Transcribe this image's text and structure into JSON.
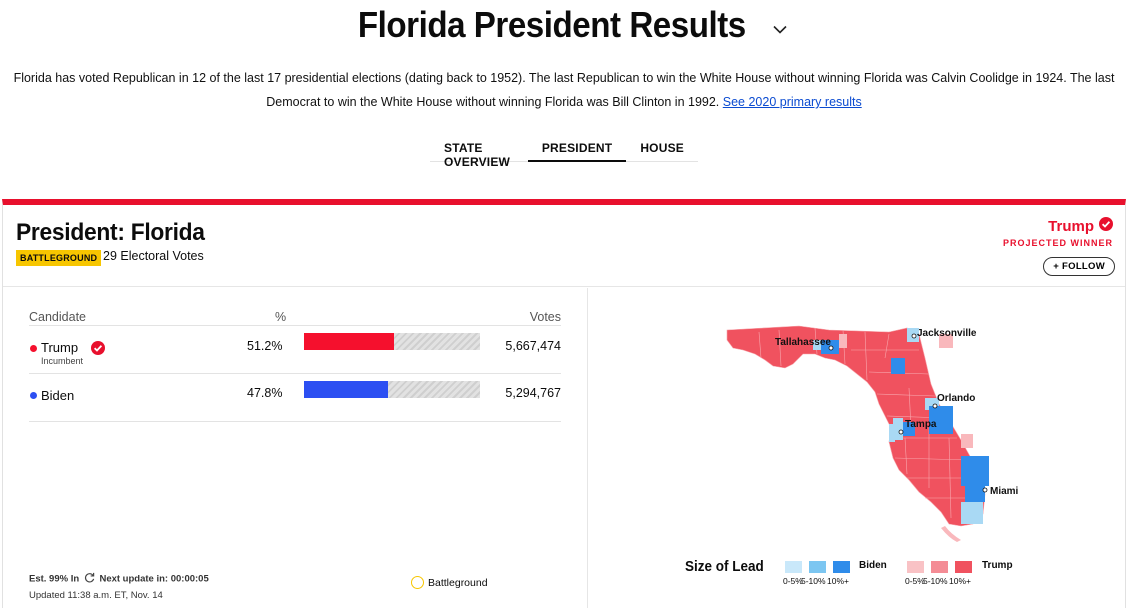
{
  "page": {
    "title": "Florida President Results",
    "intro_text": "Florida has voted Republican in 12 of the last 17 presidential elections (dating back to 1952). The last Republican to win the White House without winning Florida was Calvin Coolidge in 1924. The last Democrat to win the White House without winning Florida was Bill Clinton in 1992.",
    "intro_link": "See 2020 primary results"
  },
  "tabs": [
    {
      "label": "STATE OVERVIEW"
    },
    {
      "label": "PRESIDENT",
      "active": true
    },
    {
      "label": "HOUSE"
    }
  ],
  "race": {
    "title": "President: Florida",
    "badge": "BATTLEGROUND",
    "electoral_votes": "29 Electoral Votes",
    "winner_name": "Trump",
    "winner_label": "PROJECTED WINNER",
    "follow_label": "+ FOLLOW"
  },
  "table": {
    "headers": {
      "candidate": "Candidate",
      "pct": "%",
      "votes": "Votes"
    },
    "candidates": [
      {
        "name": "Trump",
        "subtitle": "Incumbent",
        "pct": "51.2%",
        "pct_value": 51.2,
        "votes": "5,667,474",
        "color": "#f5102d",
        "winner": true
      },
      {
        "name": "Biden",
        "subtitle": "",
        "pct": "47.8%",
        "pct_value": 47.8,
        "votes": "5,294,767",
        "color": "#2c4ff2",
        "winner": false
      }
    ]
  },
  "footer": {
    "est_in": "Est. 99% In",
    "next_update_label": "Next update in:",
    "next_update_time": "00:00:05",
    "updated": "Updated 11:38 a.m. ET, Nov. 14",
    "battleground_legend": "Battleground"
  },
  "map": {
    "cities": [
      "Tallahassee",
      "Jacksonville",
      "Orlando",
      "Tampa",
      "Miami"
    ],
    "colors": {
      "trump": "#f0525f",
      "trump_light": "#f9b8bc",
      "biden": "#2f8cea",
      "biden_light": "#a9d9f4"
    }
  },
  "lead_legend": {
    "title": "Size of Lead",
    "biden_label": "Biden",
    "trump_label": "Trump",
    "biden_bins": [
      {
        "label": "0-5%",
        "color": "#c9e8fa"
      },
      {
        "label": "5-10%",
        "color": "#7cc6f1"
      },
      {
        "label": "10%+",
        "color": "#2f8cea"
      }
    ],
    "trump_bins": [
      {
        "label": "0-5%",
        "color": "#f9c2c5"
      },
      {
        "label": "5-10%",
        "color": "#f48c95"
      },
      {
        "label": "10%+",
        "color": "#f0525f"
      }
    ]
  }
}
